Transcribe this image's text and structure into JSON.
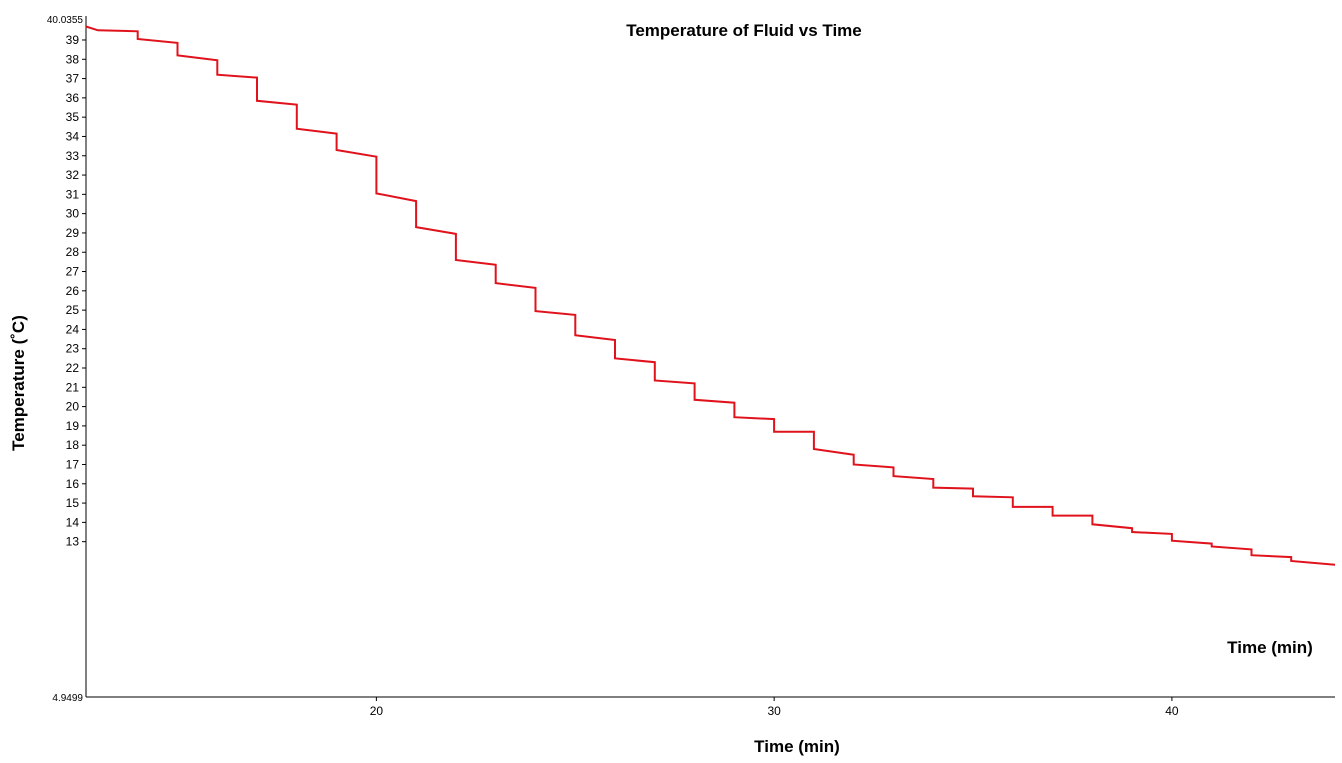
{
  "chart_data": {
    "type": "line",
    "title": "Temperature of Fluid vs Time",
    "xlabel": "Time (min)",
    "xlabel_inline": "Time (min)",
    "ylabel": "Temperature (˚C)",
    "xlim": [
      12.7,
      44.1
    ],
    "ylim": [
      4.9499,
      40.0355
    ],
    "y_min_label": "4.9499",
    "y_max_label": "40.0355",
    "x_ticks": [
      20,
      30,
      40
    ],
    "y_ticks": [
      13,
      14,
      15,
      16,
      17,
      18,
      19,
      20,
      21,
      22,
      23,
      24,
      25,
      26,
      27,
      28,
      29,
      30,
      31,
      32,
      33,
      34,
      35,
      36,
      37,
      38,
      39
    ],
    "grid": false,
    "colors": {
      "series": "#e0121c",
      "axis": "#000000"
    },
    "series": [
      {
        "x": [
          12.7,
          13.0,
          13.0,
          14.0,
          14.0,
          15.0,
          15.0,
          16.0,
          16.0,
          17.0,
          17.0,
          18.0,
          18.0,
          19.0,
          19.0,
          20.0,
          20.0,
          21.0,
          21.0,
          22.0,
          22.0,
          23.0,
          23.0,
          24.0,
          24.0,
          25.0,
          25.0,
          26.0,
          26.0,
          27.0,
          27.0,
          28.0,
          28.0,
          29.0,
          29.0,
          30.0,
          30.0,
          31.0,
          31.0,
          32.0,
          32.0,
          33.0,
          33.0,
          34.0,
          34.0,
          35.0,
          35.0,
          36.0,
          36.0,
          37.0,
          37.0,
          38.0,
          38.0,
          39.0,
          39.0,
          40.0,
          40.0,
          41.0,
          41.0,
          42.0,
          42.0,
          43.0,
          43.0,
          44.1
        ],
        "y": [
          39.7,
          39.5,
          39.5,
          39.45,
          39.05,
          38.85,
          38.2,
          37.95,
          37.2,
          37.05,
          35.85,
          35.65,
          34.4,
          34.15,
          33.3,
          32.95,
          31.05,
          30.65,
          29.3,
          28.95,
          27.6,
          27.35,
          26.4,
          26.15,
          24.95,
          24.75,
          23.7,
          23.45,
          22.5,
          22.3,
          21.35,
          21.2,
          20.35,
          20.2,
          19.45,
          19.35,
          18.7,
          18.7,
          17.8,
          17.5,
          17.0,
          16.85,
          16.4,
          16.25,
          15.8,
          15.75,
          15.35,
          15.3,
          14.8,
          14.8,
          14.35,
          14.35,
          13.9,
          13.7,
          13.5,
          13.4,
          13.05,
          12.9,
          12.75,
          12.6,
          12.3,
          12.2,
          12.0,
          11.8
        ]
      }
    ]
  }
}
